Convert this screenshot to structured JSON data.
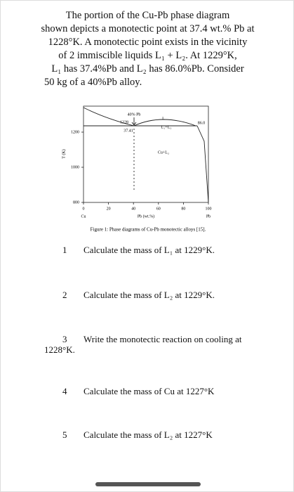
{
  "problem": {
    "lines": [
      "The portion of the Cu-Pb phase diagram",
      "shown depicts a monotectic point at 37.4 wt.% Pb at",
      "1228°K. A monotectic point exists in the vicinity",
      "of 2 immiscible liquids L₁ + L₂. At 1229°K,",
      "L₁ has 37.4%Pb and L₂ has 86.0%Pb. Consider",
      "50 kg of a 40%Pb alloy."
    ]
  },
  "figure": {
    "y_label": "T (K)",
    "x_label": "Pb (wt.%)",
    "left_end": "Cu",
    "right_end": "Pb",
    "xticks": [
      "0",
      "20",
      "40",
      "60",
      "80",
      "100"
    ],
    "yticks": [
      "800",
      "1000",
      "1200"
    ],
    "annotations": {
      "composition": "40% Pb",
      "monotectic_temp": "1228",
      "monotectic_comp": "37.41",
      "liquid": "L",
      "two_liquids": "L₁+L₂",
      "solid_liquid": "Cu+L₂",
      "right_comp": "86.0"
    },
    "caption": "Figure 1: Phase diagrams of Cu-Pb monotectic alloys [15]."
  },
  "questions": [
    {
      "number": "1",
      "text": "Calculate the mass of L₁ at 1229°K."
    },
    {
      "number": "2",
      "text": "Calculate the mass of L₂ at 1229°K."
    },
    {
      "number": "3",
      "text": "Write the monotectic reaction on cooling at",
      "continuation": "1228°K."
    },
    {
      "number": "4",
      "text": "Calculate the mass of Cu at 1227°K"
    },
    {
      "number": "5",
      "text": "Calculate the mass of L₂ at 1227°K"
    }
  ]
}
